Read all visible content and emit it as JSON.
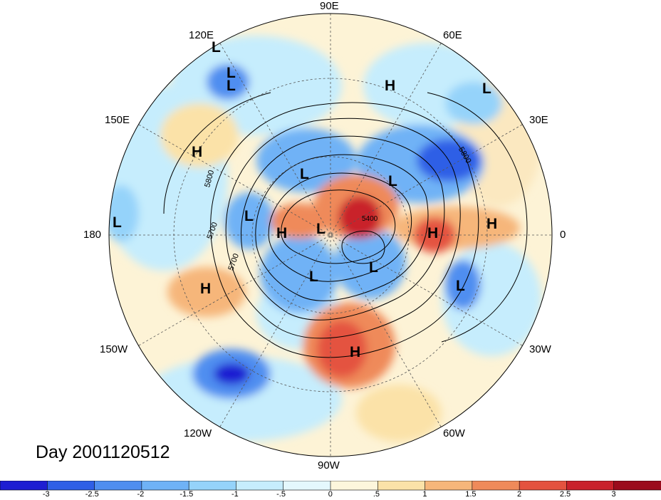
{
  "title": "Day 2001120512",
  "longitude_labels": {
    "lon_90e": "90E",
    "lon_60e": "60E",
    "lon_120e": "120E",
    "lon_30e": "30E",
    "lon_150e": "150E",
    "lon_180": "180",
    "lon_0": "0",
    "lon_150w": "150W",
    "lon_30w": "30W",
    "lon_120w": "120W",
    "lon_60w": "60W",
    "lon_90w": "90W"
  },
  "contour_labels": [
    "5800",
    "5700",
    "5700",
    "5800",
    "5400"
  ],
  "pressure_centers": [
    "L",
    "L",
    "L",
    "H",
    "L",
    "H",
    "L",
    "L",
    "L",
    "L",
    "H",
    "L",
    "H",
    "H",
    "L",
    "L",
    "H",
    "L",
    "H"
  ],
  "colorbar": {
    "ticks": [
      "-3",
      "-2.5",
      "-2",
      "-1.5",
      "-1",
      "-.5",
      "0",
      ".5",
      "1",
      "1.5",
      "2",
      "2.5",
      "3"
    ],
    "colors": [
      "#1e1ed2",
      "#2f5fe6",
      "#4f8ef0",
      "#6fb2f6",
      "#95d3fa",
      "#c6edfd",
      "#e4f8fd",
      "#fdf6dc",
      "#fbe2a8",
      "#f6b67a",
      "#ef8a5a",
      "#e4523f",
      "#c9212b",
      "#9b0b1c"
    ]
  }
}
